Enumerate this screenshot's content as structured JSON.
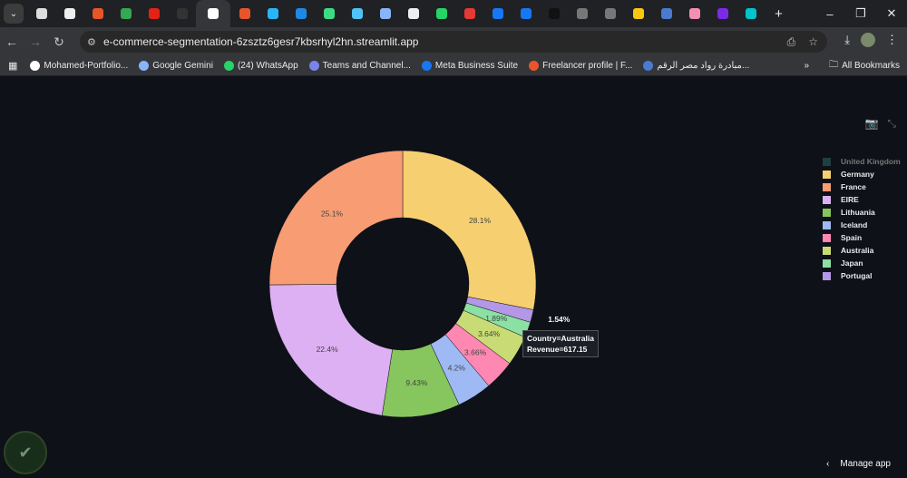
{
  "browser": {
    "url": "e-commerce-segmentation-6zsztz6gesr7kbsrhyl2hn.streamlit.app",
    "tabs": [
      {
        "icon": "openai-icon",
        "c": "#ddd"
      },
      {
        "icon": "z-icon",
        "c": "#eee"
      },
      {
        "icon": "freelancer-icon",
        "c": "#e8552b"
      },
      {
        "icon": "drive-icon",
        "c": "#34a853"
      },
      {
        "icon": "youtube-icon",
        "c": "#e62117"
      },
      {
        "icon": "blank-icon",
        "c": "#333"
      },
      {
        "icon": "streamlit-icon",
        "c": "#fff",
        "active": true
      },
      {
        "icon": "freelancer-icon",
        "c": "#e8552b"
      },
      {
        "icon": "circle-icon",
        "c": "#29b6f6"
      },
      {
        "icon": "app-icon",
        "c": "#1e88e5"
      },
      {
        "icon": "k-icon",
        "c": "#3ddc84"
      },
      {
        "icon": "bird-icon",
        "c": "#4fc3f7"
      },
      {
        "icon": "gemini-icon",
        "c": "#8ab4f8"
      },
      {
        "icon": "chat-icon",
        "c": "#eee"
      },
      {
        "icon": "whatsapp-icon",
        "c": "#25d366"
      },
      {
        "icon": "infinity-icon",
        "c": "#e53935"
      },
      {
        "icon": "meta-icon",
        "c": "#1877f2"
      },
      {
        "icon": "facebook-icon",
        "c": "#1877f2"
      },
      {
        "icon": "upwork-icon",
        "c": "#111"
      },
      {
        "icon": "globe-icon",
        "c": "#777"
      },
      {
        "icon": "globe-icon",
        "c": "#777"
      },
      {
        "icon": "s-icon",
        "c": "#f9c80e"
      },
      {
        "icon": "rowad-icon",
        "c": "#4a7bd0"
      },
      {
        "icon": "record-icon",
        "c": "#f48fb1"
      },
      {
        "icon": "canva-icon",
        "c": "#7d2ae8"
      },
      {
        "icon": "canva-icon",
        "c": "#00c4cc"
      }
    ],
    "bookmarks": [
      {
        "label": "Mohamed-Portfolio...",
        "icon": "github-icon",
        "c": "#fff"
      },
      {
        "label": "Google Gemini",
        "icon": "gemini-icon",
        "c": "#8ab4f8"
      },
      {
        "label": "(24) WhatsApp",
        "icon": "whatsapp-icon",
        "c": "#25d366"
      },
      {
        "label": "Teams and Channel...",
        "icon": "teams-icon",
        "c": "#7b83eb"
      },
      {
        "label": "Meta Business Suite",
        "icon": "meta-icon",
        "c": "#1877f2"
      },
      {
        "label": "Freelancer profile | F...",
        "icon": "freelancer-icon",
        "c": "#e8552b"
      },
      {
        "label": "مبادرة رواد مصر الرقم...",
        "icon": "rowad-icon",
        "c": "#4a7bd0"
      }
    ],
    "all_bookmarks": "All Bookmarks"
  },
  "chart_data": {
    "type": "pie",
    "hole": 0.5,
    "legend_position": "right",
    "slices": [
      {
        "label": "United Kingdom",
        "percent": null,
        "color": "#2e6f6e",
        "hidden": true
      },
      {
        "label": "Germany",
        "percent": 28.1,
        "color": "#f6cf71"
      },
      {
        "label": "France",
        "percent": 25.1,
        "color": "#f89c74"
      },
      {
        "label": "EIRE",
        "percent": 22.4,
        "color": "#dcb0f2"
      },
      {
        "label": "Lithuania",
        "percent": 9.43,
        "color": "#87c55f"
      },
      {
        "label": "Iceland",
        "percent": 4.2,
        "color": "#9eb9f3"
      },
      {
        "label": "Spain",
        "percent": 3.66,
        "color": "#fe88b1"
      },
      {
        "label": "Australia",
        "percent": 3.64,
        "color": "#c9db74"
      },
      {
        "label": "Japan",
        "percent": 1.89,
        "color": "#8be0a4"
      },
      {
        "label": "Portugal",
        "percent": 1.54,
        "color": "#b497e7"
      }
    ],
    "slice_labels": [
      "28.1%",
      "25.1%",
      "22.4%",
      "9.43%",
      "4.2%",
      "3.66%",
      "3.64%",
      "1.89%",
      "1.54%"
    ],
    "tooltip": {
      "line1": "Country=Australia",
      "line2": "Revenue=617.15"
    }
  },
  "app": {
    "manage": "Manage app"
  }
}
